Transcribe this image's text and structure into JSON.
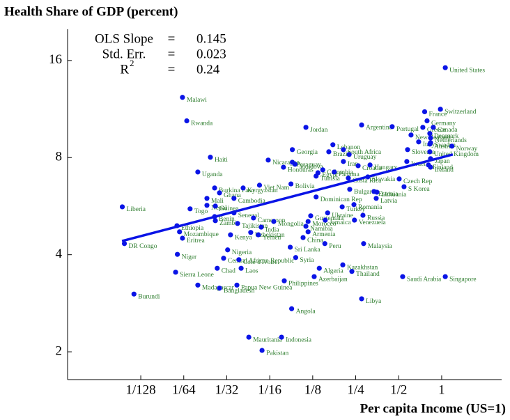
{
  "chart_data": {
    "type": "scatter",
    "title": "Health Share of GDP (percent)",
    "xlabel": "Per capita Income (US=1)",
    "log_x": true,
    "log_y": true,
    "color": "#0a14e6",
    "label_color": "#2e7d2e",
    "xlim": [
      0.0024,
      2.63
    ],
    "ylim": [
      1.64,
      20.0
    ],
    "xticks": [
      {
        "value": 0.0078125,
        "label": "1/128"
      },
      {
        "value": 0.015625,
        "label": "1/64"
      },
      {
        "value": 0.03125,
        "label": "1/32"
      },
      {
        "value": 0.0625,
        "label": "1/16"
      },
      {
        "value": 0.125,
        "label": "1/8"
      },
      {
        "value": 0.25,
        "label": "1/4"
      },
      {
        "value": 0.5,
        "label": "1/2"
      },
      1
    ],
    "yticks": [
      2,
      4,
      8,
      16
    ],
    "annotations": [
      {
        "label": "OLS Slope",
        "eq": "=",
        "value": "0.145"
      },
      {
        "label": "Std. Err.",
        "eq": "=",
        "value": "0.023"
      },
      {
        "label": "R",
        "sup": "2",
        "eq": "=",
        "value": "0.24"
      }
    ],
    "fit_line": {
      "x": [
        0.00577,
        1.197
      ],
      "y": [
        4.41,
        8.18
      ]
    },
    "point_labels": [
      "United States",
      "Switzerland",
      "France",
      "Germany",
      "Portugal",
      "Argentina",
      "Canada",
      "Greece",
      "Denmark",
      "New Zealand",
      "Netherlands",
      "Austria",
      "Norway",
      "Sweden",
      "United Kingdom",
      "Italy",
      "Slovenia",
      "Japan",
      "Israel",
      "Ireland",
      "Finland",
      "Czech Rep",
      "S Korea",
      "Hungary",
      "Croatia",
      "Slovakia",
      "Lebanon",
      "South Africa",
      "Uruguay",
      "Georgia",
      "Jordan",
      "Brazil",
      "Iran",
      "Paraguay",
      "Nicaragua",
      "Moldova",
      "Honduras",
      "Colombia",
      "Panama",
      "Costa Rica",
      "Tunisia",
      "Bolivia",
      "Viet Nam",
      "Haiti",
      "Uganda",
      "Malawi",
      "Rwanda",
      "Liberia",
      "Burkina Faso",
      "Ghana",
      "Kyrgyzstan",
      "Cambodia",
      "Mali",
      "Nepal",
      "Guinea",
      "Togo",
      "Benin",
      "Zambia",
      "Senegal",
      "Tajikistan",
      "Cameroon",
      "Mongolia",
      "India",
      "Uzbekistan",
      "Kenya",
      "Yemen",
      "Ethiopia",
      "Mozambique",
      "Eritrea",
      "DR Congo",
      "Guatemala",
      "Morocco",
      "Namibia",
      "Armenia",
      "China",
      "Peru",
      "Sri Lanka",
      "Syria",
      "Egypt",
      "Dominican Rep",
      "Thailand",
      "Algeria",
      "Kazakhstan",
      "Azerbaijan",
      "Philippines",
      "Malaysia",
      "Libya",
      "Saudi Arabia",
      "Singapore",
      "Turkey",
      "Romania",
      "Bulgaria",
      "Estonia",
      "Latvia",
      "Lithuania",
      "Russia",
      "Jamaica",
      "Venezuela",
      "Ukraine",
      "Nigeria",
      "Central African Republic",
      "Cote d'Ivoire",
      "Niger",
      "Chad",
      "Laos",
      "Sierra Leone",
      "Madagascar",
      "Bangladesh",
      "Papua New Guinea",
      "Burundi",
      "Angola",
      "Mauritania",
      "Indonesia",
      "Pakistan"
    ],
    "x": [
      1.06,
      0.98,
      0.76,
      0.79,
      0.45,
      0.275,
      0.874,
      0.738,
      0.826,
      0.61,
      0.836,
      0.826,
      1.18,
      0.836,
      0.826,
      0.69,
      0.577,
      0.836,
      0.57,
      0.836,
      0.808,
      0.504,
      0.545,
      0.315,
      0.26,
      0.304,
      0.173,
      0.205,
      0.225,
      0.09,
      0.112,
      0.162,
      0.205,
      0.09,
      0.061,
      0.094,
      0.078,
      0.147,
      0.177,
      0.222,
      0.132,
      0.088,
      0.053,
      0.024,
      0.0196,
      0.0153,
      0.0164,
      0.0058,
      0.0257,
      0.0278,
      0.0407,
      0.0351,
      0.0227,
      0.0227,
      0.026,
      0.0173,
      0.0257,
      0.026,
      0.0351,
      0.0372,
      0.0481,
      0.0667,
      0.0545,
      0.046,
      0.0332,
      0.052,
      0.014,
      0.0146,
      0.0153,
      0.006,
      0.121,
      0.116,
      0.112,
      0.116,
      0.107,
      0.152,
      0.087,
      0.095,
      0.136,
      0.132,
      0.235,
      0.139,
      0.203,
      0.128,
      0.079,
      0.284,
      0.275,
      0.533,
      1.06,
      0.201,
      0.243,
      0.227,
      0.336,
      0.348,
      0.352,
      0.281,
      0.153,
      0.245,
      0.159,
      0.0317,
      0.0297,
      0.038,
      0.0141,
      0.0268,
      0.0394,
      0.0137,
      0.0196,
      0.0278,
      0.0368,
      0.007,
      0.089,
      0.0446,
      0.0756,
      0.0552
    ],
    "y": [
      15.2,
      11.3,
      11.1,
      10.4,
      9.98,
      10.1,
      9.93,
      9.93,
      9.5,
      9.4,
      9.21,
      8.81,
      8.68,
      8.9,
      8.34,
      8.95,
      8.47,
      7.94,
      7.78,
      7.47,
      7.59,
      6.87,
      6.5,
      7.59,
      7.55,
      6.97,
      8.77,
      8.47,
      8.18,
      8.47,
      9.93,
      8.34,
      7.78,
      7.74,
      7.86,
      7.63,
      7.47,
      7.33,
      7.22,
      6.91,
      7.01,
      6.63,
      6.57,
      8.02,
      7.22,
      12.3,
      10.4,
      5.63,
      6.44,
      6.22,
      6.44,
      5.98,
      5.98,
      5.69,
      5.66,
      5.55,
      5.25,
      5.1,
      5.39,
      5.0,
      5.2,
      5.07,
      4.87,
      4.69,
      4.61,
      4.61,
      4.92,
      4.71,
      4.5,
      4.33,
      5.28,
      5.07,
      4.9,
      4.71,
      4.52,
      4.33,
      4.22,
      3.92,
      7.18,
      6.04,
      3.55,
      3.63,
      3.72,
      3.42,
      3.32,
      4.33,
      2.92,
      3.42,
      3.42,
      5.63,
      5.72,
      6.38,
      6.28,
      5.98,
      6.25,
      5.3,
      5.12,
      5.12,
      5.39,
      4.14,
      3.9,
      3.86,
      4.01,
      3.63,
      3.63,
      3.53,
      3.22,
      3.15,
      3.22,
      3.02,
      2.72,
      2.22,
      2.22,
      2.02
    ]
  }
}
